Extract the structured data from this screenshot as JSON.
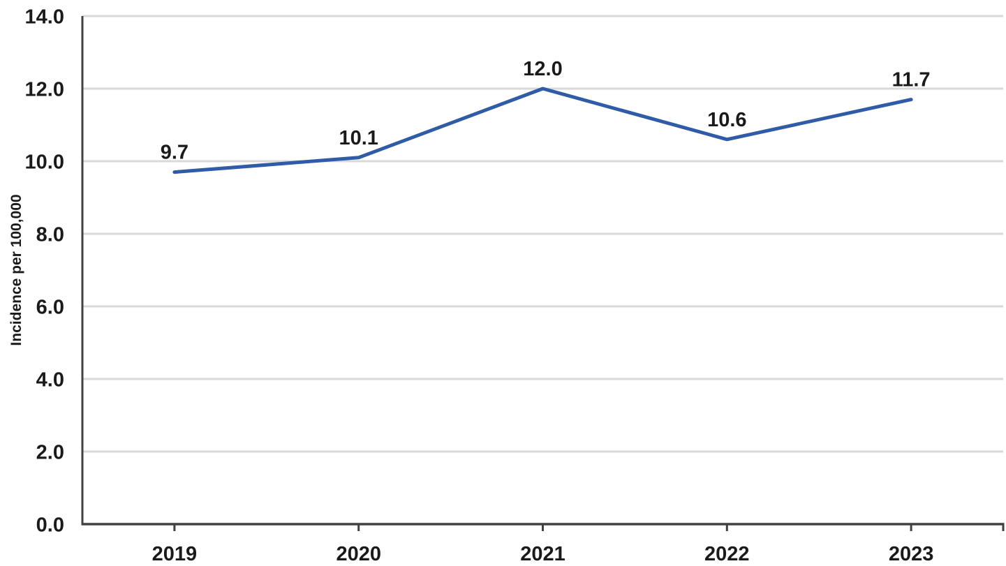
{
  "chart_data": {
    "type": "line",
    "title": "",
    "xlabel": "",
    "ylabel": "Incidence per 100,000",
    "categories": [
      "2019",
      "2020",
      "2021",
      "2022",
      "2023"
    ],
    "series": [
      {
        "name": "Incidence per 100,000",
        "values": [
          9.7,
          10.1,
          12.0,
          10.6,
          11.7
        ]
      }
    ],
    "data_labels": [
      "9.7",
      "10.1",
      "12.0",
      "10.6",
      "11.7"
    ],
    "ylim": [
      0,
      14
    ],
    "ytick_step": 2,
    "ytick_values": [
      0,
      2,
      4,
      6,
      8,
      10,
      12,
      14
    ],
    "ytick_labels": [
      "0.0",
      "2.0",
      "4.0",
      "6.0",
      "8.0",
      "10.0",
      "12.0",
      "14.0"
    ],
    "grid": "horizontal",
    "legend": "none",
    "colors": {
      "line": "#2F5BA7",
      "gridline": "#D9D9D9",
      "axis": "#404040",
      "tick": "#404040",
      "text": "#1A1A1A"
    }
  }
}
